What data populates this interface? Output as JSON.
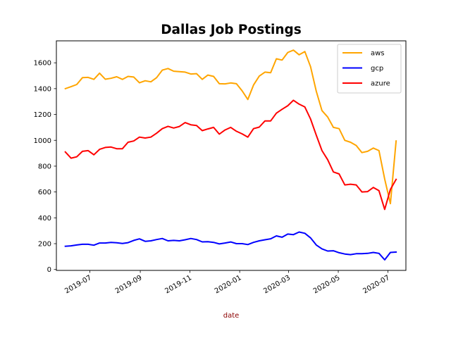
{
  "chart_data": {
    "type": "line",
    "title": "Dallas Job Postings",
    "xlabel": "date",
    "ylabel": "",
    "xlabel_color": "#8b0000",
    "x_tick_labels": [
      "2019-07",
      "2019-09",
      "2019-11",
      "2020-01",
      "2020-03",
      "2020-05",
      "2020-07"
    ],
    "x_tick_dates": [
      "2019-07-01",
      "2019-09-01",
      "2019-11-01",
      "2020-01-01",
      "2020-03-01",
      "2020-05-01",
      "2020-07-01"
    ],
    "y_ticks": [
      0,
      200,
      400,
      600,
      800,
      1000,
      1200,
      1400,
      1600
    ],
    "y_tick_labels": [
      "0",
      "200",
      "400",
      "600",
      "800",
      "1000",
      "1200",
      "1400",
      "1600"
    ],
    "xlim": [
      "2019-05-21",
      "2020-07-23"
    ],
    "ylim": [
      -7,
      1770
    ],
    "grid": false,
    "legend_position": "upper right",
    "x": [
      "2019-06-01",
      "2019-06-08",
      "2019-06-15",
      "2019-06-22",
      "2019-06-29",
      "2019-07-06",
      "2019-07-13",
      "2019-07-20",
      "2019-07-27",
      "2019-08-03",
      "2019-08-10",
      "2019-08-17",
      "2019-08-24",
      "2019-08-31",
      "2019-09-07",
      "2019-09-14",
      "2019-09-21",
      "2019-09-28",
      "2019-10-05",
      "2019-10-12",
      "2019-10-19",
      "2019-10-26",
      "2019-11-02",
      "2019-11-09",
      "2019-11-16",
      "2019-11-23",
      "2019-11-30",
      "2019-12-07",
      "2019-12-14",
      "2019-12-21",
      "2019-12-28",
      "2020-01-04",
      "2020-01-11",
      "2020-01-18",
      "2020-01-25",
      "2020-02-01",
      "2020-02-08",
      "2020-02-15",
      "2020-02-22",
      "2020-02-29",
      "2020-03-07",
      "2020-03-14",
      "2020-03-21",
      "2020-03-28",
      "2020-04-04",
      "2020-04-11",
      "2020-04-18",
      "2020-04-25",
      "2020-05-02",
      "2020-05-09",
      "2020-05-16",
      "2020-05-23",
      "2020-05-30",
      "2020-06-06",
      "2020-06-13",
      "2020-06-20",
      "2020-06-27",
      "2020-07-04",
      "2020-07-11"
    ],
    "series": [
      {
        "name": "aws",
        "color": "#ffa500",
        "values": [
          1400,
          1415,
          1432,
          1485,
          1487,
          1472,
          1520,
          1473,
          1480,
          1492,
          1472,
          1495,
          1490,
          1445,
          1461,
          1453,
          1485,
          1543,
          1556,
          1535,
          1532,
          1528,
          1513,
          1516,
          1472,
          1505,
          1495,
          1438,
          1437,
          1444,
          1438,
          1383,
          1316,
          1428,
          1497,
          1528,
          1523,
          1631,
          1621,
          1680,
          1698,
          1662,
          1687,
          1570,
          1380,
          1230,
          1180,
          1100,
          1090,
          1000,
          985,
          960,
          905,
          915,
          940,
          920,
          700,
          510,
          995
        ]
      },
      {
        "name": "gcp",
        "color": "#0000ff",
        "values": [
          180,
          183,
          190,
          195,
          195,
          188,
          205,
          205,
          210,
          207,
          202,
          208,
          225,
          237,
          218,
          222,
          232,
          240,
          222,
          225,
          222,
          230,
          240,
          232,
          214,
          215,
          210,
          198,
          205,
          213,
          200,
          200,
          193,
          210,
          222,
          230,
          238,
          260,
          250,
          274,
          270,
          290,
          280,
          245,
          190,
          160,
          143,
          145,
          130,
          120,
          115,
          122,
          122,
          125,
          132,
          125,
          75,
          132,
          135
        ]
      },
      {
        "name": "azure",
        "color": "#ff0000",
        "values": [
          910,
          862,
          872,
          915,
          920,
          888,
          930,
          945,
          948,
          935,
          935,
          985,
          995,
          1025,
          1018,
          1025,
          1055,
          1090,
          1108,
          1095,
          1107,
          1137,
          1120,
          1115,
          1075,
          1088,
          1100,
          1048,
          1080,
          1100,
          1070,
          1050,
          1025,
          1090,
          1102,
          1150,
          1150,
          1210,
          1240,
          1268,
          1310,
          1280,
          1258,
          1165,
          1040,
          920,
          850,
          755,
          740,
          655,
          660,
          655,
          600,
          603,
          635,
          610,
          465,
          620,
          697
        ]
      }
    ]
  }
}
